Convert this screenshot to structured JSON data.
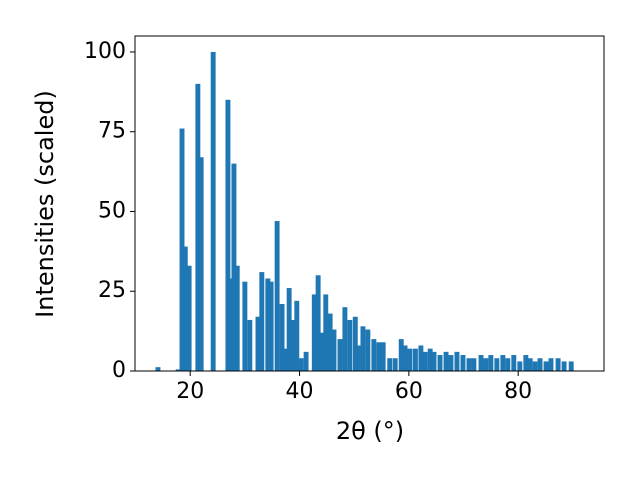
{
  "chart_data": {
    "type": "bar",
    "xlabel": "2θ (°)",
    "ylabel": "Intensities (scaled)",
    "x": [
      14.1,
      17.8,
      18.5,
      19.1,
      19.8,
      21.4,
      22.0,
      24.2,
      26.9,
      27.5,
      28.0,
      28.6,
      30.0,
      30.9,
      32.4,
      33.1,
      34.2,
      34.8,
      35.9,
      36.8,
      37.4,
      38.1,
      38.7,
      39.5,
      40.3,
      41.2,
      42.7,
      43.4,
      44.1,
      44.8,
      45.6,
      46.3,
      47.4,
      48.3,
      49.2,
      50.2,
      50.7,
      51.6,
      52.5,
      53.6,
      54.5,
      55.3,
      56.5,
      57.5,
      58.6,
      59.3,
      60.2,
      61.2,
      62.2,
      63.0,
      63.9,
      64.6,
      65.7,
      66.8,
      67.7,
      68.8,
      69.9,
      71.0,
      71.9,
      73.2,
      74.1,
      75.0,
      76.1,
      77.2,
      78.1,
      79.2,
      80.3,
      81.4,
      82.2,
      83.1,
      84.0,
      85.1,
      86.0,
      87.3,
      88.4,
      89.7
    ],
    "values": [
      1.2,
      0.5,
      76,
      39,
      33,
      90,
      67,
      100,
      85,
      29,
      65,
      33,
      28,
      16,
      17,
      31,
      29,
      28,
      47,
      21,
      7,
      26,
      16,
      22,
      4,
      6,
      24,
      30,
      12,
      24,
      18,
      13,
      10,
      20,
      16,
      17,
      8,
      14,
      13,
      10,
      9,
      9,
      4,
      4,
      10,
      8,
      7,
      7,
      8,
      6,
      7,
      6,
      5,
      6,
      5,
      6,
      5,
      4,
      4,
      5,
      4,
      5,
      4,
      5,
      4,
      5,
      3,
      5,
      4,
      3,
      4,
      3,
      4,
      4,
      3,
      3
    ],
    "color": "#1f77b4",
    "xlim": [
      9.9,
      95.7
    ],
    "ylim": [
      0,
      105
    ],
    "xticks": [
      20,
      40,
      60,
      80
    ],
    "yticks": [
      0,
      25,
      50,
      75,
      100
    ]
  }
}
